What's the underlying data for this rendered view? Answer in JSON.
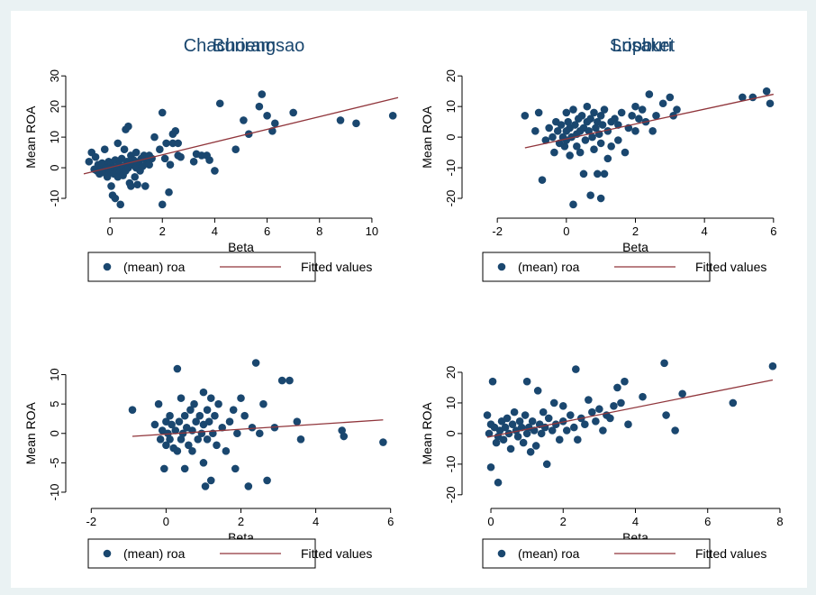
{
  "legend": {
    "marker_label": "(mean) roa",
    "line_label": "Fitted values"
  },
  "colors": {
    "marker": "#1a476f",
    "fit_line": "#90353b",
    "title": "#1a476f",
    "background": "#eaf2f3"
  },
  "chart_data": [
    {
      "type": "scatter",
      "title": "Chachoengsao",
      "xlabel": "Beta",
      "ylabel": "Mean ROA",
      "xlim": [
        -1,
        11
      ],
      "ylim": [
        -15,
        33
      ],
      "xticks": [
        0,
        2,
        4,
        6,
        8,
        10
      ],
      "yticks": [
        -10,
        0,
        10,
        20,
        30
      ],
      "legend_position": "bottom",
      "fit": {
        "x": [
          -1,
          11
        ],
        "y": [
          -2.0,
          22.9
        ]
      },
      "points": [
        [
          -0.8,
          2
        ],
        [
          -0.7,
          5
        ],
        [
          -0.6,
          -0.5
        ],
        [
          -0.55,
          3.5
        ],
        [
          -0.5,
          -1
        ],
        [
          -0.45,
          1
        ],
        [
          -0.4,
          -2
        ],
        [
          -0.35,
          0.5
        ],
        [
          -0.3,
          1.5
        ],
        [
          -0.25,
          -1.5
        ],
        [
          -0.2,
          6
        ],
        [
          -0.15,
          0
        ],
        [
          -0.1,
          -3
        ],
        [
          -0.05,
          2
        ],
        [
          0,
          -1
        ],
        [
          0,
          0.5
        ],
        [
          0.05,
          -6
        ],
        [
          0.05,
          1.5
        ],
        [
          0.1,
          -9
        ],
        [
          0.1,
          0
        ],
        [
          0.15,
          -2
        ],
        [
          0.2,
          2.5
        ],
        [
          0.2,
          -10
        ],
        [
          0.25,
          0
        ],
        [
          0.3,
          8
        ],
        [
          0.3,
          -3
        ],
        [
          0.35,
          1
        ],
        [
          0.4,
          -1
        ],
        [
          0.4,
          -12
        ],
        [
          0.45,
          3
        ],
        [
          0.5,
          0.5
        ],
        [
          0.5,
          -2.5
        ],
        [
          0.55,
          6
        ],
        [
          0.6,
          12.5
        ],
        [
          0.6,
          -1
        ],
        [
          0.65,
          2
        ],
        [
          0.7,
          13.5
        ],
        [
          0.7,
          0
        ],
        [
          0.75,
          -5
        ],
        [
          0.8,
          4
        ],
        [
          0.8,
          -6
        ],
        [
          0.85,
          1
        ],
        [
          0.9,
          2.5
        ],
        [
          0.95,
          -3
        ],
        [
          1,
          5
        ],
        [
          1,
          0
        ],
        [
          1.05,
          -5.5
        ],
        [
          1.1,
          2
        ],
        [
          1.15,
          -1
        ],
        [
          1.2,
          3
        ],
        [
          1.25,
          0.5
        ],
        [
          1.3,
          4
        ],
        [
          1.35,
          -6
        ],
        [
          1.4,
          1.5
        ],
        [
          1.45,
          2.5
        ],
        [
          1.5,
          4
        ],
        [
          1.5,
          1
        ],
        [
          1.6,
          3
        ],
        [
          1.7,
          10
        ],
        [
          1.9,
          6
        ],
        [
          2,
          -12
        ],
        [
          2,
          18
        ],
        [
          2.1,
          3
        ],
        [
          2.15,
          8
        ],
        [
          2.25,
          -8
        ],
        [
          2.3,
          1
        ],
        [
          2.4,
          8
        ],
        [
          2.4,
          11
        ],
        [
          2.5,
          12
        ],
        [
          2.6,
          4
        ],
        [
          2.6,
          8
        ],
        [
          2.7,
          3.5
        ],
        [
          3.2,
          2
        ],
        [
          3.3,
          4.5
        ],
        [
          3.5,
          4
        ],
        [
          3.7,
          4
        ],
        [
          3.8,
          2.5
        ],
        [
          4,
          -1
        ],
        [
          4.2,
          21
        ],
        [
          4.8,
          6
        ],
        [
          5.1,
          15.5
        ],
        [
          5.3,
          11
        ],
        [
          5.7,
          20
        ],
        [
          5.8,
          24
        ],
        [
          6,
          17
        ],
        [
          6.2,
          12
        ],
        [
          6.3,
          14.5
        ],
        [
          7,
          18
        ],
        [
          8.8,
          15.5
        ],
        [
          9.4,
          14.5
        ],
        [
          10.8,
          17
        ]
      ]
    },
    {
      "type": "scatter",
      "title": "Lopburi",
      "xlabel": "Beta",
      "ylabel": "Mean ROA",
      "xlim": [
        -2.5,
        6.5
      ],
      "ylim": [
        -25,
        23
      ],
      "xticks": [
        -2,
        0,
        2,
        4,
        6
      ],
      "yticks": [
        -20,
        -10,
        0,
        10,
        20
      ],
      "legend_position": "bottom",
      "fit": {
        "x": [
          -1.2,
          6
        ],
        "y": [
          -3.5,
          14
        ]
      },
      "points": [
        [
          -1.2,
          7
        ],
        [
          -0.9,
          2
        ],
        [
          -0.8,
          8
        ],
        [
          -0.7,
          -14
        ],
        [
          -0.6,
          -1
        ],
        [
          -0.5,
          3
        ],
        [
          -0.4,
          0
        ],
        [
          -0.35,
          -5
        ],
        [
          -0.3,
          5
        ],
        [
          -0.25,
          2
        ],
        [
          -0.2,
          -2
        ],
        [
          -0.15,
          4
        ],
        [
          -0.1,
          0
        ],
        [
          -0.05,
          -3
        ],
        [
          0,
          8
        ],
        [
          0,
          2
        ],
        [
          0,
          -1
        ],
        [
          0.05,
          5
        ],
        [
          0.1,
          -6
        ],
        [
          0.1,
          3
        ],
        [
          0.15,
          0
        ],
        [
          0.2,
          9
        ],
        [
          0.2,
          -22
        ],
        [
          0.25,
          4
        ],
        [
          0.3,
          1
        ],
        [
          0.3,
          -3
        ],
        [
          0.35,
          6
        ],
        [
          0.4,
          2
        ],
        [
          0.4,
          -5
        ],
        [
          0.45,
          7
        ],
        [
          0.5,
          -12
        ],
        [
          0.5,
          3
        ],
        [
          0.55,
          -1
        ],
        [
          0.6,
          5
        ],
        [
          0.6,
          10
        ],
        [
          0.65,
          2
        ],
        [
          0.7,
          -19
        ],
        [
          0.7,
          6
        ],
        [
          0.75,
          0
        ],
        [
          0.8,
          8
        ],
        [
          0.8,
          -4
        ],
        [
          0.85,
          3
        ],
        [
          0.9,
          -12
        ],
        [
          0.9,
          5
        ],
        [
          0.95,
          1
        ],
        [
          1,
          -20
        ],
        [
          1,
          7
        ],
        [
          1,
          -2
        ],
        [
          1.05,
          4
        ],
        [
          1.1,
          -12
        ],
        [
          1.1,
          9
        ],
        [
          1.2,
          2
        ],
        [
          1.2,
          -7
        ],
        [
          1.3,
          5
        ],
        [
          1.3,
          -3
        ],
        [
          1.4,
          6
        ],
        [
          1.5,
          4
        ],
        [
          1.5,
          -1
        ],
        [
          1.6,
          8
        ],
        [
          1.7,
          -5
        ],
        [
          1.8,
          3
        ],
        [
          1.9,
          7
        ],
        [
          2,
          10
        ],
        [
          2,
          2
        ],
        [
          2.1,
          6
        ],
        [
          2.2,
          9
        ],
        [
          2.3,
          5
        ],
        [
          2.4,
          14
        ],
        [
          2.5,
          2
        ],
        [
          2.6,
          7
        ],
        [
          2.8,
          11
        ],
        [
          3,
          13
        ],
        [
          3.1,
          7
        ],
        [
          3.2,
          9
        ],
        [
          5.1,
          13
        ],
        [
          5.4,
          13
        ],
        [
          5.8,
          15
        ],
        [
          5.9,
          11
        ]
      ]
    },
    {
      "type": "scatter",
      "title": "Buriram",
      "xlabel": "Beta",
      "ylabel": "Mean ROA",
      "xlim": [
        -2.2,
        6.2
      ],
      "ylim": [
        -12,
        13
      ],
      "xticks": [
        -2,
        0,
        2,
        4,
        6
      ],
      "yticks": [
        -10,
        -5,
        0,
        5,
        10
      ],
      "legend_position": "bottom",
      "fit": {
        "x": [
          -0.9,
          5.8
        ],
        "y": [
          -0.5,
          2.3
        ]
      },
      "points": [
        [
          -0.9,
          4
        ],
        [
          -0.3,
          1.5
        ],
        [
          -0.2,
          5
        ],
        [
          -0.15,
          -1
        ],
        [
          -0.1,
          0.5
        ],
        [
          -0.05,
          -6
        ],
        [
          0,
          2
        ],
        [
          0,
          -2
        ],
        [
          0.05,
          0
        ],
        [
          0.1,
          3
        ],
        [
          0.1,
          -1
        ],
        [
          0.15,
          1.5
        ],
        [
          0.2,
          -2.5
        ],
        [
          0.25,
          0.5
        ],
        [
          0.3,
          11
        ],
        [
          0.3,
          -3
        ],
        [
          0.35,
          2
        ],
        [
          0.4,
          6
        ],
        [
          0.4,
          -1
        ],
        [
          0.45,
          0
        ],
        [
          0.5,
          3
        ],
        [
          0.5,
          -6
        ],
        [
          0.55,
          1
        ],
        [
          0.6,
          -2
        ],
        [
          0.65,
          4
        ],
        [
          0.7,
          0.5
        ],
        [
          0.7,
          -3
        ],
        [
          0.75,
          5
        ],
        [
          0.8,
          2
        ],
        [
          0.85,
          -1
        ],
        [
          0.9,
          3
        ],
        [
          0.95,
          0
        ],
        [
          1,
          7
        ],
        [
          1,
          -5
        ],
        [
          1,
          1.5
        ],
        [
          1.05,
          -9
        ],
        [
          1.1,
          4
        ],
        [
          1.1,
          -1
        ],
        [
          1.15,
          2
        ],
        [
          1.2,
          6
        ],
        [
          1.2,
          -8
        ],
        [
          1.25,
          0
        ],
        [
          1.3,
          3
        ],
        [
          1.35,
          -2
        ],
        [
          1.4,
          5
        ],
        [
          1.5,
          1
        ],
        [
          1.6,
          -3
        ],
        [
          1.7,
          2
        ],
        [
          1.8,
          4
        ],
        [
          1.85,
          -6
        ],
        [
          1.9,
          0
        ],
        [
          2,
          6
        ],
        [
          2.1,
          3
        ],
        [
          2.2,
          -9
        ],
        [
          2.3,
          1
        ],
        [
          2.4,
          12
        ],
        [
          2.5,
          0
        ],
        [
          2.6,
          5
        ],
        [
          2.7,
          -8
        ],
        [
          2.9,
          1
        ],
        [
          3.1,
          9
        ],
        [
          3.3,
          9
        ],
        [
          3.5,
          2
        ],
        [
          3.6,
          -1
        ],
        [
          4.7,
          0.5
        ],
        [
          4.75,
          -0.5
        ],
        [
          5.8,
          -1.5
        ]
      ]
    },
    {
      "type": "scatter",
      "title": "Srisaket",
      "xlabel": "Beta",
      "ylabel": "Mean ROA",
      "xlim": [
        -0.3,
        8.3
      ],
      "ylim": [
        -23,
        25
      ],
      "xticks": [
        0,
        2,
        4,
        6,
        8
      ],
      "yticks": [
        -20,
        -10,
        0,
        10,
        20
      ],
      "legend_position": "bottom",
      "fit": {
        "x": [
          -0.1,
          7.8
        ],
        "y": [
          -1.2,
          17.5
        ]
      },
      "points": [
        [
          -0.1,
          6
        ],
        [
          -0.05,
          0
        ],
        [
          0,
          3
        ],
        [
          0,
          -11
        ],
        [
          0.05,
          17
        ],
        [
          0.1,
          2
        ],
        [
          0.15,
          -3
        ],
        [
          0.2,
          -1
        ],
        [
          0.2,
          -16
        ],
        [
          0.25,
          1
        ],
        [
          0.3,
          4
        ],
        [
          0.35,
          -2
        ],
        [
          0.4,
          2
        ],
        [
          0.45,
          5
        ],
        [
          0.5,
          0
        ],
        [
          0.55,
          -5
        ],
        [
          0.6,
          3
        ],
        [
          0.65,
          7
        ],
        [
          0.7,
          1
        ],
        [
          0.75,
          -1
        ],
        [
          0.8,
          4
        ],
        [
          0.85,
          2
        ],
        [
          0.9,
          -3
        ],
        [
          0.95,
          6
        ],
        [
          1,
          0
        ],
        [
          1,
          17
        ],
        [
          1.05,
          2
        ],
        [
          1.1,
          -6
        ],
        [
          1.15,
          4
        ],
        [
          1.2,
          1
        ],
        [
          1.25,
          -4
        ],
        [
          1.3,
          14
        ],
        [
          1.35,
          3
        ],
        [
          1.4,
          0
        ],
        [
          1.45,
          7
        ],
        [
          1.5,
          2
        ],
        [
          1.55,
          -10
        ],
        [
          1.6,
          5
        ],
        [
          1.7,
          1
        ],
        [
          1.75,
          10
        ],
        [
          1.8,
          3
        ],
        [
          1.9,
          -2
        ],
        [
          2,
          4
        ],
        [
          2,
          9
        ],
        [
          2.1,
          1
        ],
        [
          2.2,
          6
        ],
        [
          2.3,
          2
        ],
        [
          2.35,
          21
        ],
        [
          2.4,
          -2
        ],
        [
          2.5,
          5
        ],
        [
          2.6,
          3
        ],
        [
          2.7,
          11
        ],
        [
          2.8,
          7
        ],
        [
          2.9,
          4
        ],
        [
          3,
          8
        ],
        [
          3.1,
          1
        ],
        [
          3.2,
          6
        ],
        [
          3.3,
          5
        ],
        [
          3.4,
          9
        ],
        [
          3.5,
          15
        ],
        [
          3.6,
          10
        ],
        [
          3.7,
          17
        ],
        [
          3.8,
          3
        ],
        [
          4.2,
          12
        ],
        [
          4.8,
          23
        ],
        [
          4.85,
          6
        ],
        [
          5.1,
          1
        ],
        [
          5.3,
          13
        ],
        [
          6.7,
          10
        ],
        [
          7.8,
          22
        ]
      ]
    }
  ]
}
